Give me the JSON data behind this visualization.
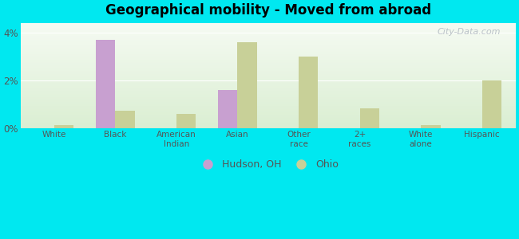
{
  "title": "Geographical mobility - Moved from abroad",
  "categories": [
    "White",
    "Black",
    "American\nIndian",
    "Asian",
    "Other\nrace",
    "2+\nraces",
    "White\nalone",
    "Hispanic"
  ],
  "hudson_values": [
    0.0,
    3.7,
    0.0,
    1.6,
    0.0,
    0.0,
    0.0,
    0.0
  ],
  "ohio_values": [
    0.15,
    0.75,
    0.6,
    3.6,
    3.0,
    0.85,
    0.15,
    2.0
  ],
  "hudson_color": "#c8a0d0",
  "ohio_color": "#c8d098",
  "ylim": [
    0,
    4.4
  ],
  "yticks": [
    0,
    2,
    4
  ],
  "ytick_labels": [
    "0%",
    "2%",
    "4%"
  ],
  "background_color": "#00e8f0",
  "legend_hudson": "Hudson, OH",
  "legend_ohio": "Ohio",
  "watermark": "City-Data.com",
  "bar_width": 0.32
}
